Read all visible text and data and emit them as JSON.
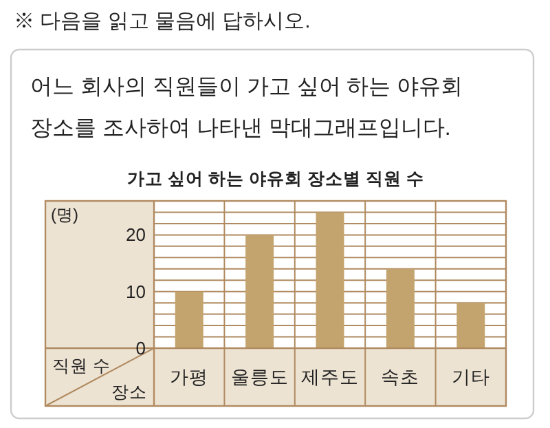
{
  "chart_data": {
    "type": "bar",
    "title": "가고 싶어 하는 야유회 장소별 직원 수",
    "annotations": [
      "※ 다음을 읽고 물음에 답하시오.",
      "어느 회사의 직원들이 가고 싶어 하는 야유회 장소를 조사하여 나타낸 막대그래프입니다.",
      "(명)"
    ],
    "ylabel": "직원 수",
    "xlabel": "장소",
    "categories": [
      "가평",
      "울릉도",
      "제주도",
      "속초",
      "기타"
    ],
    "values": [
      10,
      20,
      24,
      14,
      8
    ],
    "color": "#c4a46e",
    "ylim": [
      0,
      26
    ],
    "yticks": [
      0,
      {
        "value": 2,
        "label": null
      },
      {
        "value": 4,
        "label": null
      },
      {
        "value": 6,
        "label": null
      },
      {
        "value": 8,
        "label": null
      },
      10,
      {
        "value": 12,
        "label": null
      },
      {
        "value": 14,
        "label": null
      },
      {
        "value": 16,
        "label": null
      },
      {
        "value": 18,
        "label": null
      },
      20,
      {
        "value": 22,
        "label": null
      },
      {
        "value": 24,
        "label": null
      },
      {
        "value": 26,
        "label": null
      }
    ],
    "grid": "y"
  }
}
